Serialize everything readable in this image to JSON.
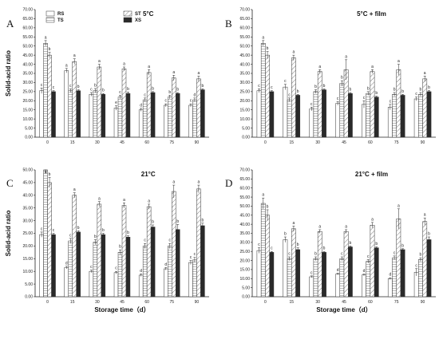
{
  "colors": {
    "RS": "#ffffff",
    "TS": "#ffffff",
    "ST": "#ffffff",
    "XS": "#2a2a2a",
    "stroke": "#333333"
  },
  "legend": [
    "RS",
    "TS",
    "ST",
    "XS"
  ],
  "chart_data": [
    {
      "type": "bar",
      "letter": "A",
      "title": "5°C",
      "ylabel": "Solid-acid ratio",
      "xlabel": "",
      "ylim": [
        0,
        70
      ],
      "yticks": [
        "0.00",
        "5.00",
        "10.00",
        "15.00",
        "20.00",
        "25.00",
        "30.00",
        "35.00",
        "40.00",
        "45.00",
        "50.00",
        "55.00",
        "60.00",
        "65.00",
        "70.00"
      ],
      "categories": [
        "0",
        "15",
        "30",
        "45",
        "60",
        "75",
        "90"
      ],
      "series": [
        {
          "name": "RS",
          "values": [
            25.5,
            36.5,
            23.5,
            16.0,
            15.0,
            17.5,
            17.5
          ],
          "err": [
            1.5,
            1.2,
            1.0,
            1.2,
            0.8,
            0.8,
            0.8
          ],
          "sig": [
            "c",
            "a",
            "c",
            "e",
            "d",
            "c",
            "c"
          ]
        },
        {
          "name": "TS",
          "values": [
            51.5,
            25.5,
            25.5,
            22.0,
            20.5,
            22.0,
            20.5
          ],
          "err": [
            1.5,
            1.0,
            1.2,
            1.0,
            1.0,
            1.0,
            1.0
          ],
          "sig": [
            "a",
            "c",
            "b",
            "c",
            "c",
            "b",
            "d"
          ]
        },
        {
          "name": "ST",
          "values": [
            45.0,
            41.5,
            38.5,
            37.5,
            35.5,
            32.5,
            32.0
          ],
          "err": [
            1.5,
            1.5,
            1.5,
            1.0,
            1.5,
            1.5,
            1.5
          ],
          "sig": [
            "b",
            "a",
            "a",
            "a",
            "a",
            "a",
            "a"
          ]
        },
        {
          "name": "XS",
          "values": [
            25.0,
            25.5,
            23.5,
            24.0,
            24.5,
            24.0,
            26.0
          ],
          "err": [
            0.5,
            0.5,
            0.5,
            0.8,
            0.5,
            0.5,
            0.5
          ],
          "sig": [
            "c",
            "b",
            "b",
            "b",
            "b",
            "b",
            "b"
          ]
        }
      ]
    },
    {
      "type": "bar",
      "letter": "B",
      "title": "5°C + film",
      "ylabel": "",
      "xlabel": "",
      "ylim": [
        0,
        70
      ],
      "yticks": [
        "0.00",
        "5.00",
        "10.00",
        "15.00",
        "20.00",
        "25.00",
        "30.00",
        "35.00",
        "40.00",
        "45.00",
        "50.00",
        "55.00",
        "60.00",
        "65.00",
        "70.00"
      ],
      "categories": [
        "0",
        "15",
        "30",
        "45",
        "60",
        "75",
        "90"
      ],
      "series": [
        {
          "name": "RS",
          "values": [
            25.5,
            27.5,
            15.5,
            18.5,
            18.0,
            16.5,
            21.0
          ],
          "err": [
            1.0,
            1.5,
            1.0,
            1.0,
            2.0,
            1.5,
            1.0
          ],
          "sig": [
            "c",
            "c",
            "c",
            "c",
            "c",
            "c",
            "c"
          ]
        },
        {
          "name": "TS",
          "values": [
            51.5,
            20.5,
            25.0,
            29.5,
            24.0,
            23.5,
            23.5
          ],
          "err": [
            1.5,
            1.0,
            1.0,
            1.5,
            1.0,
            1.0,
            1.0
          ],
          "sig": [
            "a",
            "c",
            "b",
            "b",
            "b",
            "b",
            "b"
          ]
        },
        {
          "name": "ST",
          "values": [
            45.0,
            43.5,
            36.0,
            37.0,
            36.0,
            37.0,
            32.0
          ],
          "err": [
            2.0,
            1.5,
            1.0,
            5.5,
            1.0,
            3.0,
            1.5
          ],
          "sig": [
            "b",
            "a",
            "a",
            "a",
            "a",
            "a",
            "a"
          ]
        },
        {
          "name": "XS",
          "values": [
            25.0,
            23.0,
            26.0,
            24.0,
            22.0,
            23.0,
            25.0
          ],
          "err": [
            0.5,
            0.5,
            0.5,
            0.5,
            0.5,
            0.5,
            0.5
          ],
          "sig": [
            "c",
            "b",
            "b",
            "b",
            "b",
            "b",
            "b"
          ]
        }
      ]
    },
    {
      "type": "bar",
      "letter": "C",
      "title": "21°C",
      "ylabel": "Solid-acid ratio",
      "xlabel": "Storage time（d）",
      "ylim": [
        0,
        50
      ],
      "yticks": [
        "0.00",
        "5.00",
        "10.00",
        "15.00",
        "20.00",
        "25.00",
        "30.00",
        "35.00",
        "40.00",
        "45.00",
        "50.00"
      ],
      "categories": [
        "0",
        "15",
        "30",
        "45",
        "60",
        "75",
        "90"
      ],
      "series": [
        {
          "name": "RS",
          "values": [
            24.5,
            11.5,
            10.0,
            9.5,
            8.5,
            11.0,
            13.5
          ],
          "err": [
            1.0,
            0.5,
            0.5,
            0.5,
            0.5,
            0.5,
            0.8
          ],
          "sig": [
            "c",
            "d",
            "c",
            "c",
            "d",
            "d",
            "c"
          ]
        },
        {
          "name": "TS",
          "values": [
            51.5,
            22.0,
            21.5,
            17.5,
            20.0,
            20.0,
            14.5
          ],
          "err": [
            3.0,
            1.0,
            1.0,
            1.0,
            1.0,
            1.0,
            1.0
          ],
          "sig": [
            "a",
            "c",
            "b",
            "b",
            "c",
            "c",
            "c"
          ]
        },
        {
          "name": "ST",
          "values": [
            45.0,
            40.0,
            36.5,
            36.0,
            35.5,
            41.5,
            42.5
          ],
          "err": [
            2.0,
            1.0,
            1.0,
            1.0,
            1.0,
            2.5,
            1.5
          ],
          "sig": [
            "b",
            "a",
            "a",
            "a",
            "a",
            "a",
            "a"
          ]
        },
        {
          "name": "XS",
          "values": [
            24.5,
            25.5,
            24.5,
            23.5,
            27.5,
            26.5,
            28.0
          ],
          "err": [
            0.5,
            0.5,
            0.5,
            0.5,
            0.8,
            2.0,
            1.0
          ],
          "sig": [
            "c",
            "b",
            "b",
            "b",
            "b",
            "b",
            "b"
          ]
        }
      ]
    },
    {
      "type": "bar",
      "letter": "D",
      "title": "21°C + film",
      "ylabel": "",
      "xlabel": "Storage time（d）",
      "ylim": [
        0,
        70
      ],
      "yticks": [
        "0.00",
        "5.00",
        "10.00",
        "15.00",
        "20.00",
        "25.00",
        "30.00",
        "35.00",
        "40.00",
        "45.00",
        "50.00",
        "55.00",
        "60.00",
        "65.00",
        "70.00"
      ],
      "categories": [
        "0",
        "15",
        "30",
        "45",
        "60",
        "75",
        "90"
      ],
      "series": [
        {
          "name": "RS",
          "values": [
            25.5,
            31.5,
            11.0,
            12.5,
            12.0,
            10.0,
            13.5
          ],
          "err": [
            1.5,
            1.5,
            0.5,
            0.5,
            0.5,
            0.5,
            2.0
          ],
          "sig": [
            "c",
            "b",
            "c",
            "d",
            "d",
            "d",
            "c"
          ]
        },
        {
          "name": "TS",
          "values": [
            51.5,
            21.0,
            21.0,
            21.0,
            19.5,
            21.5,
            20.5
          ],
          "err": [
            3.0,
            1.0,
            1.0,
            1.0,
            1.0,
            1.0,
            1.0
          ],
          "sig": [
            "a",
            "c",
            "b",
            "c",
            "c",
            "c",
            "b"
          ]
        },
        {
          "name": "ST",
          "values": [
            45.0,
            37.5,
            36.0,
            36.0,
            39.5,
            43.0,
            41.5
          ],
          "err": [
            3.0,
            1.5,
            1.0,
            1.0,
            1.5,
            5.5,
            2.0
          ],
          "sig": [
            "b",
            "a",
            "a",
            "a",
            "a",
            "a",
            "a"
          ]
        },
        {
          "name": "XS",
          "values": [
            24.5,
            26.0,
            24.5,
            27.5,
            27.0,
            26.0,
            31.5
          ],
          "err": [
            0.5,
            1.0,
            0.5,
            0.5,
            0.5,
            0.5,
            1.5
          ],
          "sig": [
            "c",
            "b",
            "b",
            "b",
            "b",
            "b",
            "b"
          ]
        }
      ]
    }
  ]
}
